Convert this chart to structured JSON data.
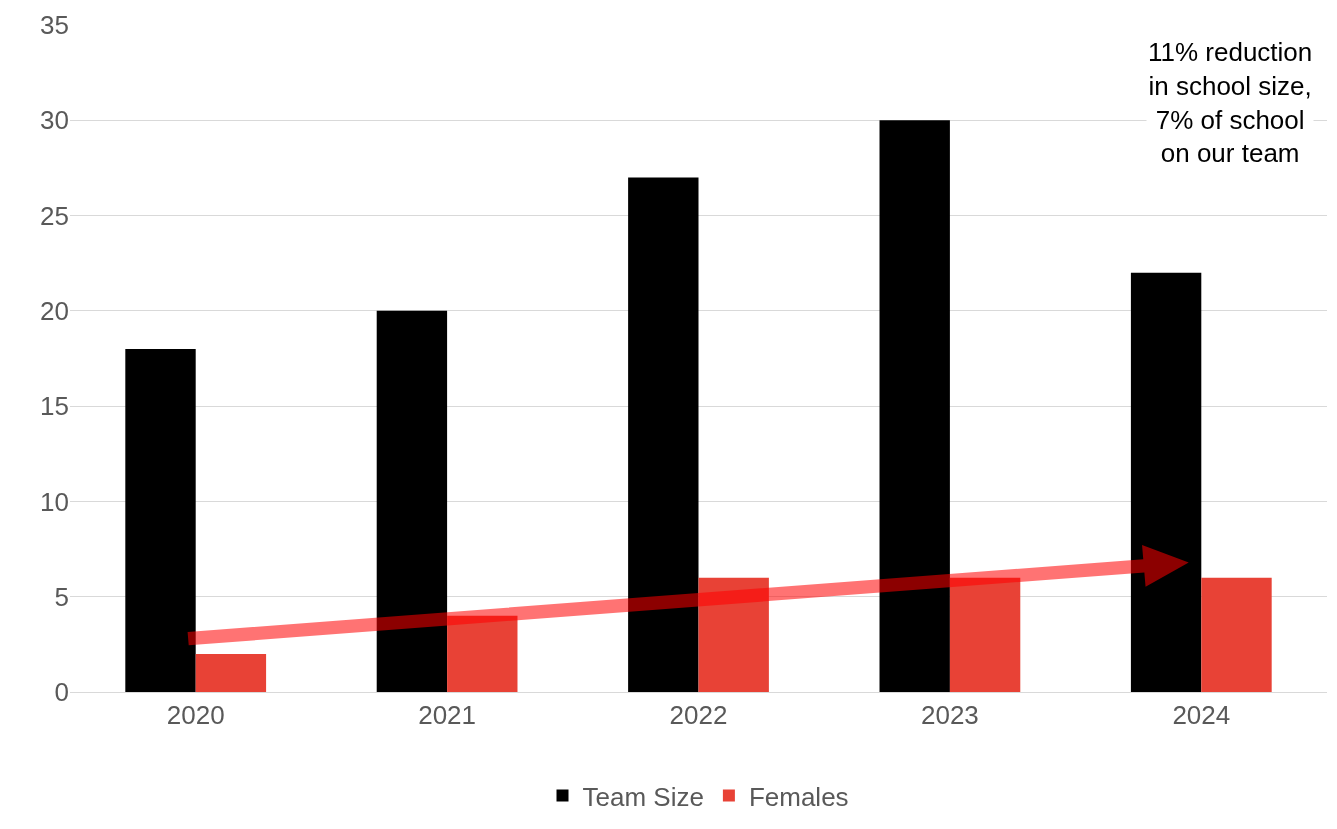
{
  "chart_data": {
    "type": "bar",
    "categories": [
      "2020",
      "2021",
      "2022",
      "2023",
      "2024"
    ],
    "series": [
      {
        "name": "Team Size",
        "color": "#000000",
        "values": [
          18,
          20,
          27,
          30,
          22
        ]
      },
      {
        "name": "Females",
        "color": "#e84236",
        "values": [
          2,
          4,
          6,
          6,
          6
        ]
      }
    ],
    "ylim": [
      0,
      35
    ],
    "yticks": [
      0,
      5,
      10,
      15,
      20,
      25,
      30,
      35
    ],
    "grid": "y",
    "legend": "bottom",
    "annotations": [
      "11% reduction\nin school size,\n7% of school\non our team"
    ]
  }
}
